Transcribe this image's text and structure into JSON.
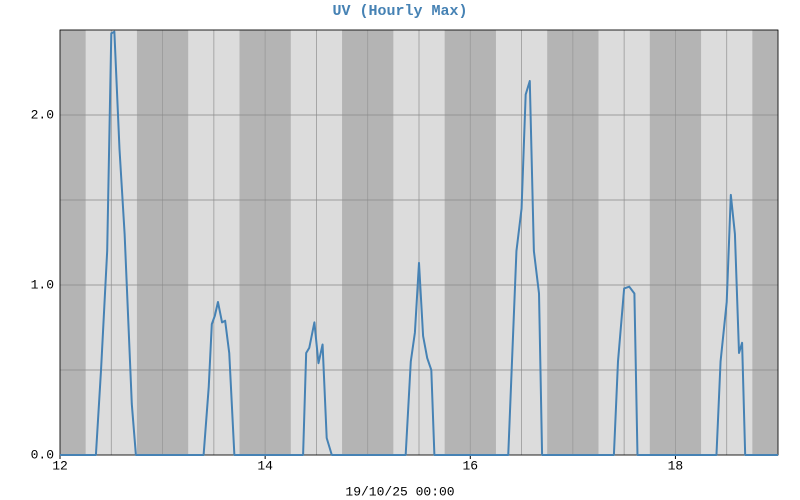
{
  "chart_data": {
    "type": "line",
    "title": "UV (Hourly Max)",
    "x_label": "19/10/25 00:00",
    "xlim": [
      12,
      19
    ],
    "xticks": [
      12,
      14,
      16,
      18
    ],
    "ylim": [
      0,
      2.5
    ],
    "yticks": [
      {
        "value": 0,
        "label": "0.0"
      },
      {
        "value": 1,
        "label": "1.0"
      },
      {
        "value": 2,
        "label": "2.0"
      }
    ],
    "grid": true,
    "series": [
      {
        "name": "UV",
        "color": "#4682b4",
        "x": [
          12,
          12.35,
          12.4,
          12.46,
          12.5,
          12.53,
          12.58,
          12.63,
          12.7,
          12.74,
          13.4,
          13.45,
          13.48,
          13.51,
          13.54,
          13.58,
          13.61,
          13.65,
          13.7,
          14.37,
          14.4,
          14.43,
          14.48,
          14.52,
          14.56,
          14.6,
          14.65,
          15.37,
          15.42,
          15.46,
          15.5,
          15.54,
          15.58,
          15.62,
          15.65,
          16.37,
          16.45,
          16.5,
          16.54,
          16.58,
          16.62,
          16.67,
          16.7,
          16.73,
          17.4,
          17.44,
          17.5,
          17.55,
          17.6,
          17.63,
          18.4,
          18.44,
          18.5,
          18.54,
          18.58,
          18.62,
          18.65,
          18.68,
          19
        ],
        "values": [
          0,
          0,
          0.5,
          1.2,
          2.48,
          2.49,
          1.8,
          1.3,
          0.3,
          0,
          0,
          0.4,
          0.77,
          0.82,
          0.9,
          0.78,
          0.79,
          0.6,
          0,
          0,
          0.6,
          0.63,
          0.78,
          0.54,
          0.65,
          0.1,
          0,
          0,
          0.55,
          0.72,
          1.13,
          0.7,
          0.57,
          0.5,
          0,
          0,
          1.2,
          1.45,
          2.12,
          2.2,
          1.2,
          0.95,
          0,
          0,
          0,
          0.55,
          0.98,
          0.99,
          0.95,
          0,
          0,
          0.55,
          0.9,
          1.53,
          1.3,
          0.6,
          0.66,
          0,
          0
        ]
      }
    ]
  }
}
